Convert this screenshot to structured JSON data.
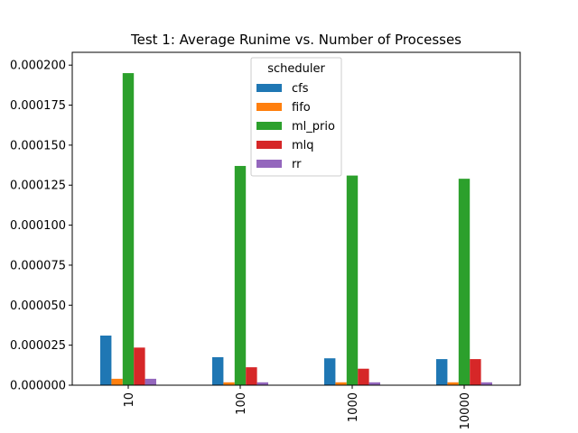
{
  "chart_data": {
    "type": "bar",
    "title": "Test 1: Average Runime vs. Number of Processes",
    "xlabel": "",
    "ylabel": "",
    "categories": [
      "10",
      "100",
      "1000",
      "10000"
    ],
    "ylim": [
      0,
      0.000208
    ],
    "yticks": [
      "0.000000",
      "0.000025",
      "0.000050",
      "0.000075",
      "0.000100",
      "0.000125",
      "0.000150",
      "0.000175",
      "0.000200"
    ],
    "ytick_values": [
      0,
      2.5e-05,
      5e-05,
      7.5e-05,
      0.0001,
      0.000125,
      0.00015,
      0.000175,
      0.0002
    ],
    "legend": {
      "title": "scheduler",
      "position": "top-center"
    },
    "series": [
      {
        "name": "cfs",
        "color": "#1f77b4",
        "values": [
          3.1e-05,
          1.75e-05,
          1.68e-05,
          1.63e-05
        ]
      },
      {
        "name": "fifo",
        "color": "#ff7f0e",
        "values": [
          4e-06,
          1.8e-06,
          1.8e-06,
          1.8e-06
        ]
      },
      {
        "name": "ml_prio",
        "color": "#2ca02c",
        "values": [
          0.000195,
          0.000137,
          0.000131,
          0.000129
        ]
      },
      {
        "name": "mlq",
        "color": "#d62728",
        "values": [
          2.35e-05,
          1.12e-05,
          1.03e-05,
          1.63e-05
        ]
      },
      {
        "name": "rr",
        "color": "#9467bd",
        "values": [
          4e-06,
          1.8e-06,
          1.8e-06,
          1.8e-06
        ]
      }
    ],
    "grid": false
  }
}
